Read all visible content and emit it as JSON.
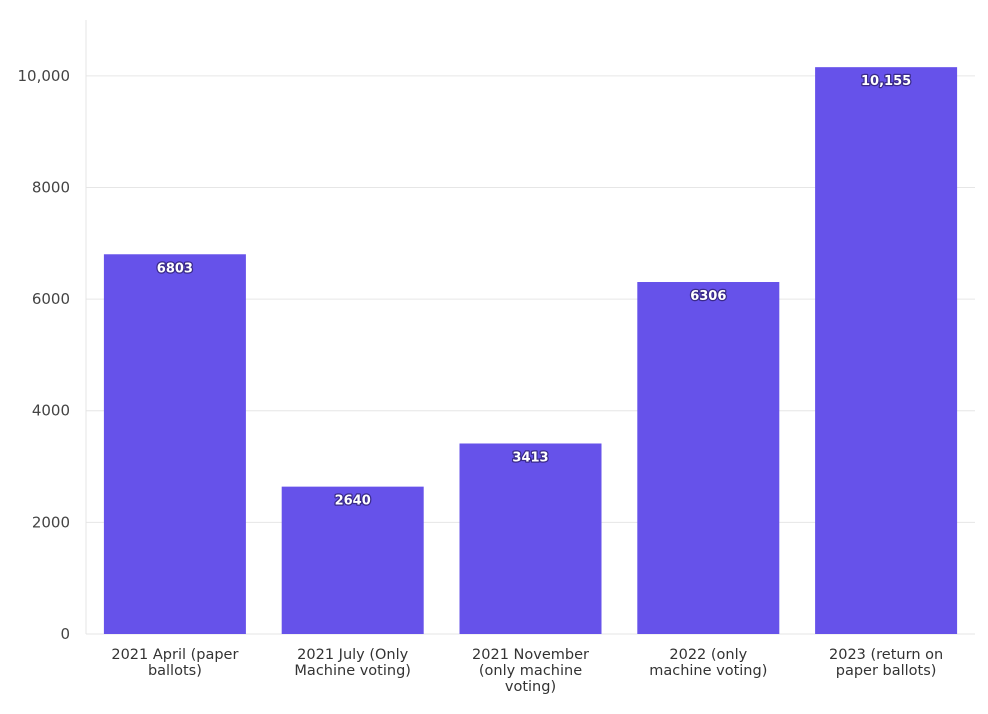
{
  "chart_data": {
    "type": "bar",
    "categories": [
      [
        "2021 April (paper",
        "ballots)"
      ],
      [
        "2021 July (Only",
        "Machine voting)"
      ],
      [
        "2021 November",
        "(only machine",
        "voting)"
      ],
      [
        "2022 (only",
        "machine voting)"
      ],
      [
        "2023 (return on",
        "paper ballots)"
      ]
    ],
    "values": [
      6803,
      2640,
      3413,
      6306,
      10155
    ],
    "value_labels": [
      "6803",
      "2640",
      "3413",
      "6306",
      "10,155"
    ],
    "yticks": [
      0,
      2000,
      4000,
      6000,
      8000,
      10000
    ],
    "ytick_labels": [
      "0",
      "2000",
      "4000",
      "6000",
      "8000",
      "10,000"
    ],
    "ylim": [
      0,
      11000
    ],
    "grid": true,
    "legend": "none",
    "bar_color": "#6652ea"
  }
}
